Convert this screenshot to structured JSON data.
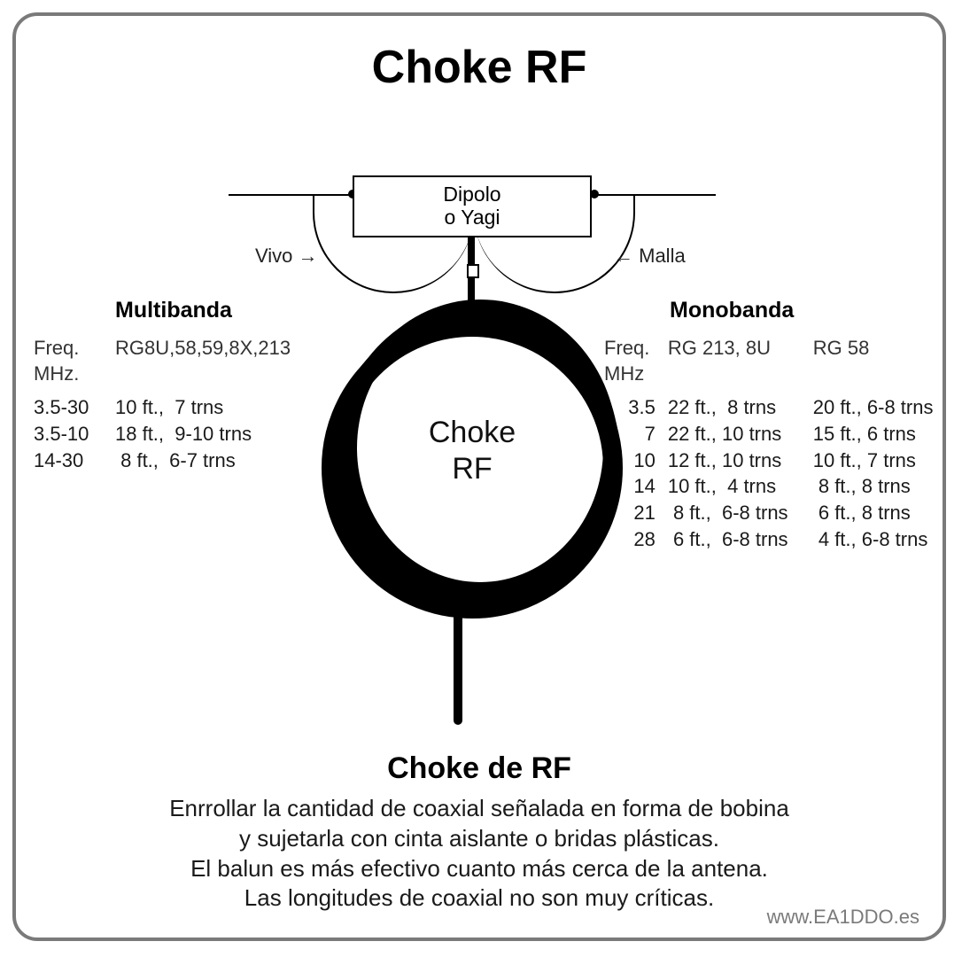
{
  "colors": {
    "frame": "#7a7a7a",
    "text": "#000000",
    "muted": "#7a7a7a",
    "background": "#ffffff"
  },
  "fonts": {
    "family": "Arial",
    "title_size": 52,
    "subtitle_size": 34,
    "body_size": 26,
    "table_size": 22
  },
  "title": "Choke RF",
  "diagram": {
    "box_label_line1": "Dipolo",
    "box_label_line2": "o Yagi",
    "left_label": "Vivo",
    "right_label": "Malla",
    "coil_label_line1": "Choke",
    "coil_label_line2": "RF"
  },
  "multiband": {
    "heading": "Multibanda",
    "freq_header": "Freq.\nMHz.",
    "cable_header": "RG8U,58,59,8X,213",
    "rows": [
      {
        "freq": "3.5-30",
        "val": "10 ft.,  7 trns"
      },
      {
        "freq": "3.5-10",
        "val": "18 ft.,  9-10 trns"
      },
      {
        "freq": "14-30",
        "val": " 8 ft.,  6-7 trns"
      }
    ]
  },
  "monoband": {
    "heading": "Monobanda",
    "freq_header": "Freq.\nMHz",
    "col1_header": "RG 213, 8U",
    "col2_header": "RG 58",
    "rows": [
      {
        "freq": "3.5",
        "c1": "22 ft.,  8 trns",
        "c2": "20 ft., 6-8 trns"
      },
      {
        "freq": "7",
        "c1": "22 ft., 10 trns",
        "c2": "15 ft., 6 trns"
      },
      {
        "freq": "10",
        "c1": "12 ft., 10 trns",
        "c2": "10 ft., 7 trns"
      },
      {
        "freq": "14",
        "c1": "10 ft.,  4 trns",
        "c2": " 8 ft., 8 trns"
      },
      {
        "freq": "21",
        "c1": " 8 ft.,  6-8 trns",
        "c2": " 6 ft., 8 trns"
      },
      {
        "freq": "28",
        "c1": " 6 ft.,  6-8 trns",
        "c2": " 4 ft., 6-8 trns"
      }
    ]
  },
  "subtitle": "Choke de RF",
  "description": {
    "l1": "Enrrollar la cantidad de coaxial señalada en forma de bobina",
    "l2": "y sujetarla con cinta aislante  o bridas plásticas.",
    "l3": "El balun es más efectivo cuanto más cerca de la antena.",
    "l4": "Las longitudes de coaxial no son muy críticas."
  },
  "credit": "www.EA1DDO.es"
}
